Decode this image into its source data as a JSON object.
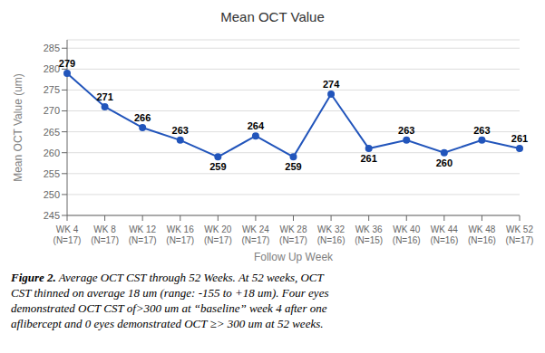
{
  "chart_data": {
    "type": "line",
    "title": "Mean OCT Value",
    "xlabel": "Follow Up Week",
    "ylabel": "Mean OCT Value (um)",
    "categories": [
      "WK 4\n(N=17)",
      "WK 8\n(N=17)",
      "WK 12\n(N=17)",
      "WK 16\n(N=17)",
      "WK 20\n(N=17)",
      "WK 24\n(N=17)",
      "WK 28\n(N=17)",
      "WK 32\n(N=16)",
      "WK 36\n(N=15)",
      "WK 40\n(N=16)",
      "WK 44\n(N=16)",
      "WK 48\n(N=16)",
      "WK 52\n(N=17)"
    ],
    "values": [
      279,
      271,
      266,
      263,
      259,
      264,
      259,
      274,
      261,
      263,
      260,
      263,
      261
    ],
    "color": "#2255BB",
    "marker": "circle",
    "ylim": [
      245,
      287
    ],
    "yticks": [
      245,
      250,
      255,
      260,
      265,
      270,
      275,
      280,
      285
    ],
    "grid": true,
    "data_labels": true,
    "annotations": [
      "Figure 2.",
      "Average OCT CST through 52 Weeks. At 52 weeks, OCT",
      "CST thinned on average 18 um (range: -155 to +18 um). Four eyes",
      "demonstrated OCT CST of>300 um at “baseline” week 4 after one",
      "aflibercept and 0 eyes demonstrated OCT ≥> 300 um at 52 weeks."
    ]
  }
}
